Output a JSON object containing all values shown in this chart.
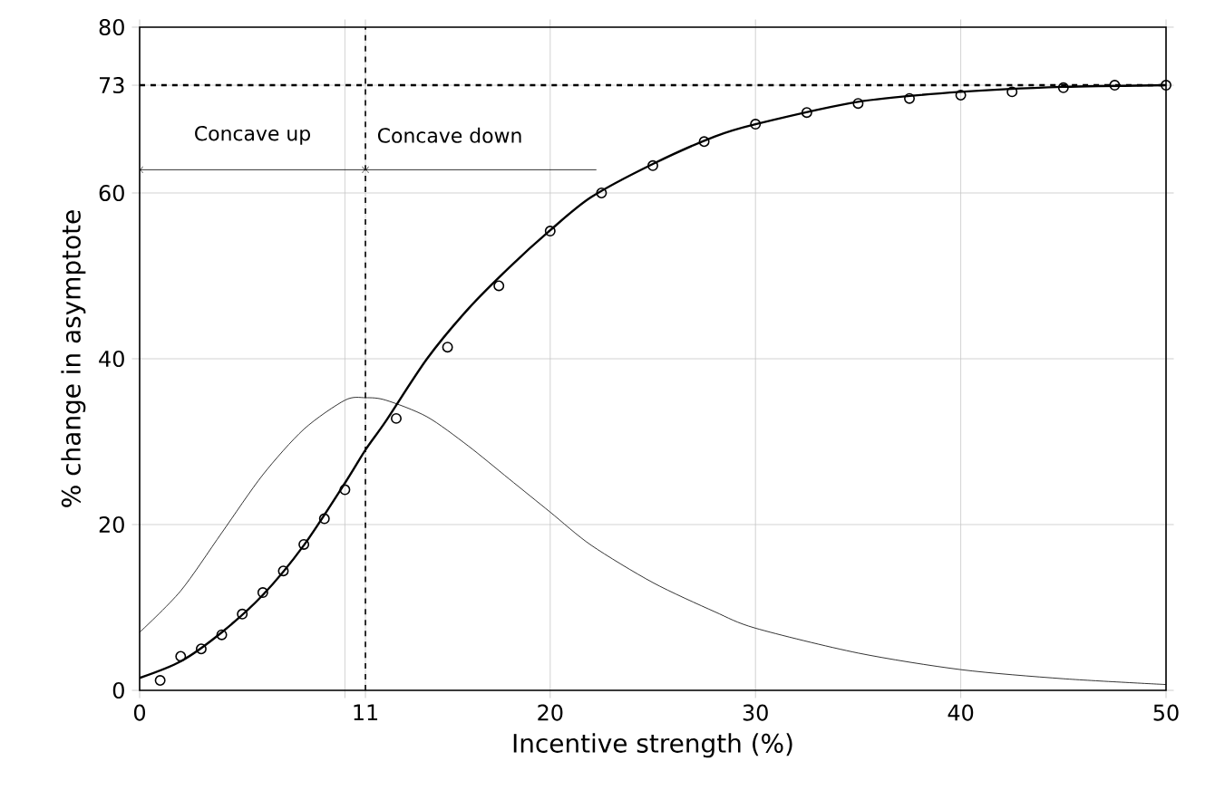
{
  "chart_data": {
    "type": "line",
    "xlabel": "Incentive strength (%)",
    "ylabel": "% change in asymptote",
    "xlim": [
      0,
      50
    ],
    "ylim": [
      0,
      80
    ],
    "xticks": [
      0,
      {
        "value": 10,
        "label": null
      },
      11,
      20,
      30,
      40,
      50
    ],
    "yticks": [
      0,
      20,
      40,
      60,
      73,
      80
    ],
    "grid": true,
    "series": [
      {
        "type": "scatter",
        "marker": "circle",
        "color": "#000000",
        "x": [
          1,
          2,
          3,
          4,
          5,
          6,
          7,
          8,
          9,
          10,
          12.5,
          15,
          17.5,
          20,
          22.5,
          25,
          27.5,
          30,
          32.5,
          35,
          37.5,
          40,
          42.5,
          45,
          47.5,
          50
        ],
        "values": [
          1.2,
          4.1,
          5.0,
          6.7,
          9.2,
          11.8,
          14.4,
          17.6,
          20.7,
          24.2,
          32.8,
          41.4,
          48.8,
          55.4,
          60.0,
          63.3,
          66.2,
          68.3,
          69.7,
          70.8,
          71.4,
          71.8,
          72.2,
          72.7,
          73.0,
          73.0
        ]
      },
      {
        "color": "#000000",
        "line_style": "solid",
        "x": [
          0,
          2,
          4,
          6,
          8,
          10,
          11,
          12,
          14,
          16,
          18,
          20,
          22,
          25,
          28,
          30,
          35,
          40,
          45,
          50
        ],
        "values": [
          1.5,
          3.5,
          7,
          11.5,
          17.5,
          25,
          29,
          32.5,
          40,
          46,
          51,
          55.5,
          59.5,
          63.5,
          66.8,
          68.3,
          71,
          72.2,
          72.8,
          73.0
        ]
      },
      {
        "color": "#000000",
        "line_style": "solid",
        "x": [
          0,
          2,
          4,
          6,
          8,
          10,
          11,
          12,
          14,
          16,
          18,
          20,
          22,
          25,
          28,
          30,
          35,
          40,
          45,
          50
        ],
        "values": [
          7,
          12,
          19,
          26,
          31.5,
          35,
          35.3,
          35,
          33,
          29.5,
          25.5,
          21.5,
          17.5,
          13,
          9.5,
          7.5,
          4.5,
          2.5,
          1.4,
          0.7
        ]
      }
    ],
    "ref_lines": [
      {
        "axis": "x",
        "value": 11,
        "line_style": "dashed"
      },
      {
        "axis": "y",
        "value": 73,
        "line_style": "dashed"
      }
    ],
    "annotations": [
      "Concave up",
      "Concave down"
    ]
  }
}
